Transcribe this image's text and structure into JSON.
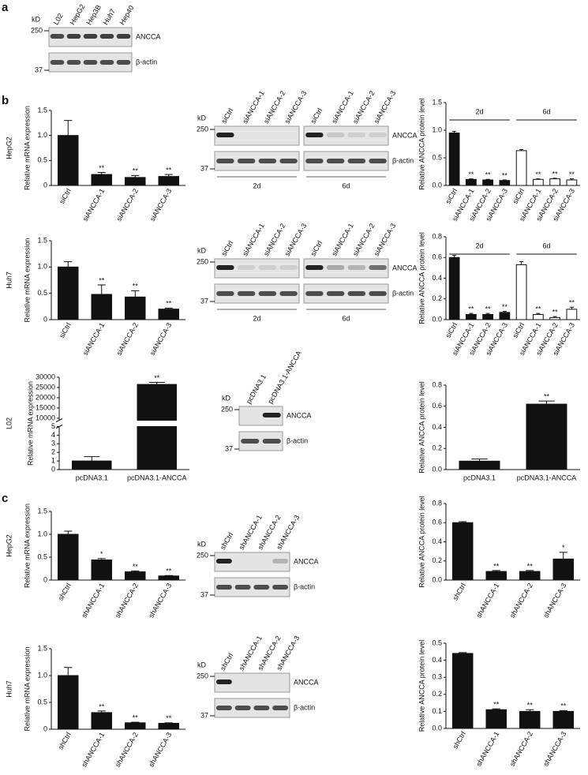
{
  "panel_labels": [
    "a",
    "b",
    "c"
  ],
  "blots": [
    {
      "kD": "kD",
      "markers": [
        "250",
        "37"
      ],
      "rows": [
        "ANCCA",
        "β-actin"
      ],
      "lanes": [
        "L02",
        "HepG2",
        "Hep3B",
        "Huh7",
        "Hep40"
      ]
    },
    {
      "kD": "kD",
      "markers": [
        "250",
        "37"
      ],
      "rows": [
        "ANCCA",
        "β-actin"
      ],
      "lanes": [
        "siCtrl",
        "siANCCA-1",
        "siANCCA-2",
        "siANCCA-3",
        "siCtrl",
        "siANCCA-1",
        "siANCCA-2",
        "siANCCA-3"
      ],
      "groups": [
        "2d",
        "6d"
      ]
    },
    {
      "kD": "kD",
      "markers": [
        "250",
        "37"
      ],
      "rows": [
        "ANCCA",
        "β-actin"
      ],
      "lanes": [
        "siCtrl",
        "siANCCA-1",
        "siANCCA-2",
        "siANCCA-3",
        "siCtrl",
        "siANCCA-1",
        "siANCCA-2",
        "siANCCA-3"
      ],
      "groups": [
        "2d",
        "6d"
      ]
    },
    {
      "kD": "kD",
      "markers": [
        "250",
        "37"
      ],
      "rows": [
        "ANCCA",
        "β-actin"
      ],
      "lanes": [
        "pcDNA3.1",
        "pcDNA3.1-ANCCA"
      ]
    },
    {
      "kD": "kD",
      "markers": [
        "250",
        "37"
      ],
      "rows": [
        "ANCCA",
        "β-actin"
      ],
      "lanes": [
        "shCtrl",
        "shANCCA-1",
        "shANCCA-2",
        "shANCCA-3"
      ]
    },
    {
      "kD": "kD",
      "markers": [
        "250",
        "37"
      ],
      "rows": [
        "ANCCA",
        "β-actin"
      ],
      "lanes": [
        "shCtrl",
        "shANCCA-1",
        "shANCCA-2",
        "shANCCA-3"
      ]
    }
  ],
  "chart_data": [
    {
      "type": "bar",
      "side_label": "HepG2",
      "ylabel": "Relative mRNA expression",
      "categories": [
        "siCtrl",
        "siANCCA-1",
        "siANCCA-2",
        "siANCCA-3"
      ],
      "values": [
        1.0,
        0.22,
        0.16,
        0.18
      ],
      "errors": [
        0.3,
        0.04,
        0.04,
        0.04
      ],
      "significance": [
        null,
        "**",
        "**",
        "**"
      ],
      "color": "#111111",
      "ylim": [
        0,
        1.5
      ],
      "yticks": [
        0,
        0.5,
        {
          "value": 1,
          "label": "1.0"
        },
        1.5
      ],
      "rotate_labels": true
    },
    {
      "type": "bar",
      "ylabel": "Relative ANCCA protein level",
      "categories": [
        "siCtrl",
        "siANCCA-1",
        "siANCCA-2",
        "siANCCA-3",
        "siCtrl",
        "siANCCA-1",
        "siANCCA-2",
        "siANCCA-3"
      ],
      "values": [
        0.95,
        0.11,
        0.1,
        0.09,
        0.63,
        0.11,
        0.12,
        0.1
      ],
      "errors": [
        0.03,
        0.01,
        0.01,
        0.01,
        0.02,
        0.01,
        0.01,
        0.02
      ],
      "significance": [
        null,
        "**",
        "**",
        "**",
        null,
        "**",
        "**",
        "**"
      ],
      "colors": [
        "#111111",
        "#111111",
        "#111111",
        "#111111",
        "#ffffff",
        "#ffffff",
        "#ffffff",
        "#ffffff"
      ],
      "groups": [
        {
          "label": "2d",
          "size": 4
        },
        {
          "label": "6d",
          "size": 4
        }
      ],
      "ylim": [
        0,
        1.5
      ],
      "yticks": [
        {
          "value": 0,
          "label": "0.0"
        },
        0.5,
        {
          "value": 1,
          "label": "1.0"
        },
        1.5
      ],
      "rotate_labels": true
    },
    {
      "type": "bar",
      "side_label": "Huh7",
      "ylabel": "Relative mRNA expression",
      "categories": [
        "siCtrl",
        "siANCCA-1",
        "siANCCA-2",
        "siANCCA-3"
      ],
      "values": [
        1.0,
        0.48,
        0.43,
        0.2
      ],
      "errors": [
        0.1,
        0.18,
        0.12,
        0.02
      ],
      "significance": [
        null,
        "**",
        "**",
        "**"
      ],
      "color": "#111111",
      "ylim": [
        0,
        1.5
      ],
      "yticks": [
        0,
        0.5,
        {
          "value": 1,
          "label": "1.0"
        },
        1.5
      ],
      "rotate_labels": true
    },
    {
      "type": "bar",
      "ylabel": "Relative ANCCA protein level",
      "categories": [
        "siCtrl",
        "siANCCA-1",
        "siANCCA-2",
        "siANCCA-3",
        "siCtrl",
        "siANCCA-1",
        "siANCCA-2",
        "siANCCA-3"
      ],
      "values": [
        0.6,
        0.05,
        0.05,
        0.07,
        0.53,
        0.05,
        0.02,
        0.1
      ],
      "errors": [
        0.02,
        0.01,
        0.01,
        0.01,
        0.03,
        0.01,
        0.01,
        0.02
      ],
      "significance": [
        null,
        "**",
        "**",
        "**",
        null,
        "**",
        "**",
        "**"
      ],
      "colors": [
        "#111111",
        "#111111",
        "#111111",
        "#111111",
        "#ffffff",
        "#ffffff",
        "#ffffff",
        "#ffffff"
      ],
      "groups": [
        {
          "label": "2d",
          "size": 4
        },
        {
          "label": "6d",
          "size": 4
        }
      ],
      "ylim": [
        0,
        0.8
      ],
      "yticks": [
        {
          "value": 0,
          "label": "0.0"
        },
        0.2,
        0.4,
        0.6,
        0.8
      ],
      "rotate_labels": true
    },
    {
      "type": "bar",
      "side_label": "L02",
      "ylabel": "Relative mRNA expression",
      "categories": [
        "pcDNA3.1",
        "pcDNA3.1-ANCCA"
      ],
      "values": [
        1.0,
        26500
      ],
      "errors": [
        0.5,
        1000
      ],
      "significance": [
        null,
        "**"
      ],
      "color": "#111111",
      "segments": [
        {
          "ylim": [
            0,
            5
          ],
          "yticks": [
            0,
            1,
            2,
            3,
            4,
            5
          ]
        },
        {
          "ylim": [
            9000,
            30000
          ],
          "yticks": [
            10000,
            15000,
            20000,
            25000,
            30000
          ]
        }
      ],
      "rotate_labels": false
    },
    {
      "type": "bar",
      "ylabel": "Relative ANCCA protein level",
      "categories": [
        "pcDNA3.1",
        "pcDNA3.1-ANCCA"
      ],
      "values": [
        0.08,
        0.62
      ],
      "errors": [
        0.02,
        0.03
      ],
      "significance": [
        null,
        "**"
      ],
      "color": "#111111",
      "ylim": [
        0,
        0.8
      ],
      "yticks": [
        {
          "value": 0,
          "label": "0.0"
        },
        0.2,
        0.4,
        0.6,
        0.8
      ],
      "rotate_labels": false
    },
    {
      "type": "bar",
      "side_label": "HepG2",
      "ylabel": "Relative mRNA expression",
      "categories": [
        "shCtrl",
        "shANCCA-1",
        "shANCCA-2",
        "shANCCA-3"
      ],
      "values": [
        1.0,
        0.44,
        0.18,
        0.09
      ],
      "errors": [
        0.07,
        0.03,
        0.02,
        0.01
      ],
      "significance": [
        null,
        "*",
        "**",
        "**"
      ],
      "color": "#111111",
      "ylim": [
        0,
        1.5
      ],
      "yticks": [
        0,
        0.5,
        {
          "value": 1,
          "label": "1.0"
        },
        1.5
      ],
      "rotate_labels": true
    },
    {
      "type": "bar",
      "ylabel": "Relative ANCCA protein level",
      "categories": [
        "shCtrl",
        "shANCCA-1",
        "shANCCA-2",
        "shANCCA-3"
      ],
      "values": [
        0.6,
        0.09,
        0.09,
        0.22
      ],
      "errors": [
        0.01,
        0.01,
        0.01,
        0.07
      ],
      "significance": [
        null,
        "**",
        "**",
        "*"
      ],
      "color": "#111111",
      "ylim": [
        0,
        0.8
      ],
      "yticks": [
        {
          "value": 0,
          "label": "0.0"
        },
        0.2,
        0.4,
        0.6,
        0.8
      ],
      "rotate_labels": true
    },
    {
      "type": "bar",
      "side_label": "Huh7",
      "ylabel": "Relative mRNA expression",
      "categories": [
        "shCtrl",
        "shANCCA-1",
        "shANCCA-2",
        "shANCCA-3"
      ],
      "values": [
        1.0,
        0.31,
        0.12,
        0.11
      ],
      "errors": [
        0.15,
        0.03,
        0.01,
        0.01
      ],
      "significance": [
        null,
        "**",
        "**",
        "**"
      ],
      "color": "#111111",
      "ylim": [
        0,
        1.5
      ],
      "yticks": [
        0,
        0.5,
        {
          "value": 1,
          "label": "1.0"
        },
        1.5
      ],
      "rotate_labels": true
    },
    {
      "type": "bar",
      "ylabel": "Relative ANCCA protein level",
      "categories": [
        "shCtrl",
        "shANCCA-1",
        "shANCCA-2",
        "shANCCA-3"
      ],
      "values": [
        0.44,
        0.11,
        0.1,
        0.1
      ],
      "errors": [
        0.005,
        0.005,
        0.01,
        0.005
      ],
      "significance": [
        null,
        "**",
        "**",
        "**"
      ],
      "color": "#111111",
      "ylim": [
        0,
        0.5
      ],
      "yticks": [
        {
          "value": 0,
          "label": "0.0"
        },
        0.1,
        0.2,
        0.3,
        0.4,
        0.5
      ],
      "rotate_labels": true
    }
  ]
}
